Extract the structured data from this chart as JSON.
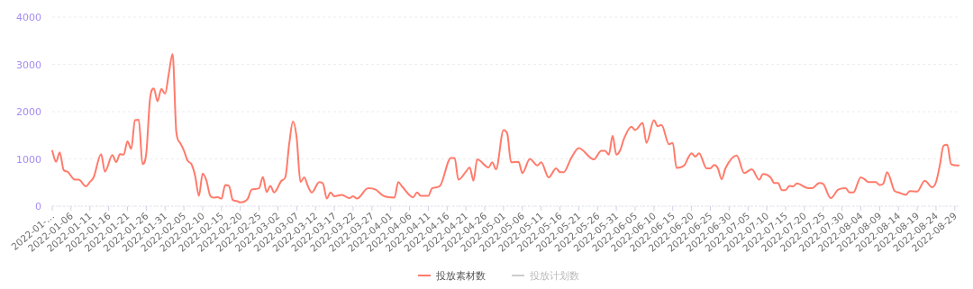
{
  "chart_data": {
    "type": "line",
    "ylim": [
      0,
      4000
    ],
    "yticks": [
      0,
      1000,
      2000,
      3000,
      4000
    ],
    "grid": "y",
    "legend": "bottom",
    "marker": "none",
    "line_style": "solid",
    "xlim": [
      "2022-01-01",
      "2022-08-30"
    ],
    "xticks": [
      {
        "value": "2022-01-01",
        "label": "2022-01-…"
      },
      "2022-01-06",
      "2022-01-11",
      "2022-01-16",
      "2022-01-21",
      "2022-01-26",
      "2022-01-31",
      "2022-02-05",
      "2022-02-10",
      "2022-02-15",
      "2022-02-20",
      "2022-02-25",
      "2022-03-02",
      "2022-03-07",
      "2022-03-12",
      "2022-03-17",
      "2022-03-22",
      "2022-03-27",
      "2022-04-01",
      "2022-04-06",
      "2022-04-11",
      "2022-04-16",
      "2022-04-21",
      "2022-04-26",
      "2022-05-01",
      "2022-05-06",
      "2022-05-11",
      "2022-05-16",
      "2022-05-21",
      "2022-05-26",
      "2022-05-31",
      "2022-06-05",
      "2022-06-10",
      "2022-06-15",
      "2022-06-20",
      "2022-06-25",
      "2022-06-30",
      "2022-07-05",
      "2022-07-10",
      "2022-07-15",
      "2022-07-20",
      "2022-07-25",
      "2022-07-30",
      "2022-08-04",
      "2022-08-09",
      "2022-08-14",
      "2022-08-19",
      "2022-08-24",
      "2022-08-29"
    ],
    "series": [
      {
        "name": "投放素材数",
        "color": "#ff7b6b",
        "x": [
          "2022-01-01",
          "2022-01-02",
          "2022-01-03",
          "2022-01-04",
          "2022-01-05",
          "2022-01-07",
          "2022-01-08",
          "2022-01-10",
          "2022-01-11",
          "2022-01-12",
          "2022-01-14",
          "2022-01-15",
          "2022-01-17",
          "2022-01-18",
          "2022-01-19",
          "2022-01-20",
          "2022-01-21",
          "2022-01-22",
          "2022-01-23",
          "2022-01-24",
          "2022-01-25",
          "2022-01-26",
          "2022-01-27",
          "2022-01-28",
          "2022-01-29",
          "2022-01-30",
          "2022-01-31",
          "2022-02-01",
          "2022-02-02",
          "2022-02-03",
          "2022-02-04",
          "2022-02-05",
          "2022-02-06",
          "2022-02-07",
          "2022-02-08",
          "2022-02-09",
          "2022-02-10",
          "2022-02-11",
          "2022-02-12",
          "2022-02-13",
          "2022-02-14",
          "2022-02-15",
          "2022-02-16",
          "2022-02-17",
          "2022-02-18",
          "2022-02-19",
          "2022-02-20",
          "2022-02-22",
          "2022-02-23",
          "2022-02-25",
          "2022-02-26",
          "2022-02-27",
          "2022-02-28",
          "2022-03-01",
          "2022-03-03",
          "2022-03-04",
          "2022-03-05",
          "2022-03-06",
          "2022-03-07",
          "2022-03-08",
          "2022-03-09",
          "2022-03-10",
          "2022-03-11",
          "2022-03-13",
          "2022-03-14",
          "2022-03-15",
          "2022-03-16",
          "2022-03-17",
          "2022-03-19",
          "2022-03-21",
          "2022-03-22",
          "2022-03-23",
          "2022-03-26",
          "2022-03-28",
          "2022-03-30",
          "2022-04-02",
          "2022-04-03",
          "2022-04-04",
          "2022-04-07",
          "2022-04-08",
          "2022-04-09",
          "2022-04-11",
          "2022-04-12",
          "2022-04-14",
          "2022-04-17",
          "2022-04-18",
          "2022-04-19",
          "2022-04-21",
          "2022-04-22",
          "2022-04-23",
          "2022-04-24",
          "2022-04-27",
          "2022-04-28",
          "2022-04-29",
          "2022-05-01",
          "2022-05-02",
          "2022-05-03",
          "2022-05-05",
          "2022-05-06",
          "2022-05-08",
          "2022-05-10",
          "2022-05-11",
          "2022-05-13",
          "2022-05-15",
          "2022-05-16",
          "2022-05-17",
          "2022-05-19",
          "2022-05-21",
          "2022-05-25",
          "2022-05-27",
          "2022-05-28",
          "2022-05-29",
          "2022-05-30",
          "2022-05-31",
          "2022-06-01",
          "2022-06-02",
          "2022-06-04",
          "2022-06-05",
          "2022-06-07",
          "2022-06-08",
          "2022-06-10",
          "2022-06-11",
          "2022-06-12",
          "2022-06-14",
          "2022-06-15",
          "2022-06-16",
          "2022-06-18",
          "2022-06-20",
          "2022-06-21",
          "2022-06-22",
          "2022-06-24",
          "2022-06-25",
          "2022-06-26",
          "2022-06-27",
          "2022-06-28",
          "2022-06-29",
          "2022-07-02",
          "2022-07-04",
          "2022-07-06",
          "2022-07-08",
          "2022-07-09",
          "2022-07-11",
          "2022-07-12",
          "2022-07-13",
          "2022-07-14",
          "2022-07-15",
          "2022-07-16",
          "2022-07-17",
          "2022-07-18",
          "2022-07-21",
          "2022-07-22",
          "2022-07-24",
          "2022-07-25",
          "2022-07-27",
          "2022-07-29",
          "2022-07-31",
          "2022-08-01",
          "2022-08-02",
          "2022-08-04",
          "2022-08-05",
          "2022-08-06",
          "2022-08-08",
          "2022-08-09",
          "2022-08-10",
          "2022-08-11",
          "2022-08-13",
          "2022-08-14",
          "2022-08-16",
          "2022-08-17",
          "2022-08-19",
          "2022-08-21",
          "2022-08-23",
          "2022-08-24",
          "2022-08-25",
          "2022-08-26",
          "2022-08-27",
          "2022-08-28",
          "2022-08-30"
        ],
        "values": [
          1170,
          940,
          1140,
          770,
          730,
          560,
          560,
          420,
          510,
          610,
          1100,
          730,
          1080,
          930,
          1100,
          1090,
          1370,
          1210,
          1820,
          1830,
          890,
          1120,
          2270,
          2490,
          2220,
          2480,
          2380,
          2810,
          3220,
          1560,
          1340,
          1180,
          960,
          890,
          640,
          220,
          690,
          540,
          220,
          180,
          190,
          160,
          450,
          430,
          130,
          110,
          80,
          160,
          350,
          380,
          620,
          300,
          430,
          290,
          540,
          620,
          1310,
          1790,
          1440,
          510,
          610,
          420,
          290,
          510,
          480,
          160,
          290,
          210,
          240,
          170,
          210,
          160,
          380,
          350,
          220,
          180,
          510,
          420,
          190,
          290,
          220,
          220,
          380,
          420,
          1020,
          1020,
          560,
          730,
          820,
          540,
          990,
          820,
          930,
          780,
          1610,
          1530,
          930,
          940,
          700,
          1000,
          860,
          930,
          610,
          800,
          720,
          720,
          1020,
          1230,
          990,
          1170,
          1170,
          1090,
          1490,
          1090,
          1180,
          1420,
          1680,
          1610,
          1760,
          1340,
          1820,
          1690,
          1720,
          1310,
          1340,
          810,
          860,
          1120,
          1050,
          1120,
          800,
          800,
          870,
          800,
          570,
          800,
          1070,
          700,
          780,
          560,
          680,
          610,
          490,
          490,
          340,
          340,
          430,
          420,
          480,
          380,
          380,
          490,
          470,
          170,
          350,
          380,
          290,
          290,
          610,
          570,
          510,
          510,
          450,
          480,
          720,
          320,
          290,
          240,
          320,
          310,
          540,
          400,
          510,
          860,
          1280,
          1300,
          890,
          860
        ]
      },
      {
        "name": "投放计划数",
        "color": "#cccccc"
      }
    ]
  }
}
